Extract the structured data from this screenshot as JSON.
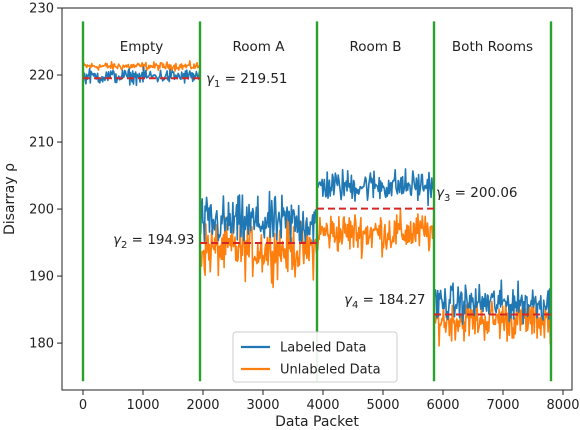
{
  "chart_data": {
    "type": "line",
    "xlabel": "Data Packet",
    "ylabel": "Disarray ρ",
    "xlim": [
      -350,
      8150
    ],
    "ylim": [
      173,
      230
    ],
    "x_ticks": [
      0,
      1000,
      2000,
      3000,
      4000,
      5000,
      6000,
      7000,
      8000
    ],
    "y_ticks": [
      180,
      190,
      200,
      210,
      220,
      230
    ],
    "grid": false,
    "legend": {
      "placement": "bottom-center",
      "entries": [
        "Labeled Data",
        "Unlabeled Data"
      ]
    },
    "colors": {
      "labeled": "#1f77b4",
      "unlabeled": "#ff7f0e",
      "boundary": "#2ca02c",
      "threshold": "#d62728"
    },
    "region_boundaries": [
      0,
      1950,
      3900,
      5850,
      7800
    ],
    "regions": [
      {
        "label": "Empty",
        "x_start": 0,
        "x_end": 1950
      },
      {
        "label": "Room A",
        "x_start": 1950,
        "x_end": 3900
      },
      {
        "label": "Room B",
        "x_start": 3900,
        "x_end": 5850
      },
      {
        "label": "Both Rooms",
        "x_start": 5850,
        "x_end": 7800
      }
    ],
    "thresholds": [
      {
        "symbol": "γ",
        "sub": "1",
        "value_text": " = 219.51",
        "value": 219.51,
        "x_start": 0,
        "x_end": 1950
      },
      {
        "symbol": "γ",
        "sub": "2",
        "value_text": " = 194.93",
        "value": 194.93,
        "x_start": 1950,
        "x_end": 3900
      },
      {
        "symbol": "γ",
        "sub": "3",
        "value_text": " = 200.06",
        "value": 200.06,
        "x_start": 3900,
        "x_end": 5850
      },
      {
        "symbol": "γ",
        "sub": "4",
        "value_text": " = 184.27",
        "value": 184.27,
        "x_start": 5850,
        "x_end": 7800
      }
    ],
    "series": [
      {
        "name": "Labeled Data",
        "segments": [
          {
            "x_start": 0,
            "x_end": 1950,
            "mean": 219.8,
            "amp": 1.6
          },
          {
            "x_start": 1950,
            "x_end": 3900,
            "mean": 198.0,
            "amp": 5.5
          },
          {
            "x_start": 3900,
            "x_end": 5850,
            "mean": 203.5,
            "amp": 3.5
          },
          {
            "x_start": 5850,
            "x_end": 7800,
            "mean": 186.0,
            "amp": 4.0
          }
        ]
      },
      {
        "name": "Unlabeled Data",
        "segments": [
          {
            "x_start": 0,
            "x_end": 1950,
            "mean": 221.3,
            "amp": 0.9
          },
          {
            "x_start": 1950,
            "x_end": 3900,
            "mean": 194.0,
            "amp": 6.0
          },
          {
            "x_start": 3900,
            "x_end": 5850,
            "mean": 196.5,
            "amp": 4.5
          },
          {
            "x_start": 5850,
            "x_end": 7800,
            "mean": 183.5,
            "amp": 4.5
          }
        ]
      }
    ]
  }
}
